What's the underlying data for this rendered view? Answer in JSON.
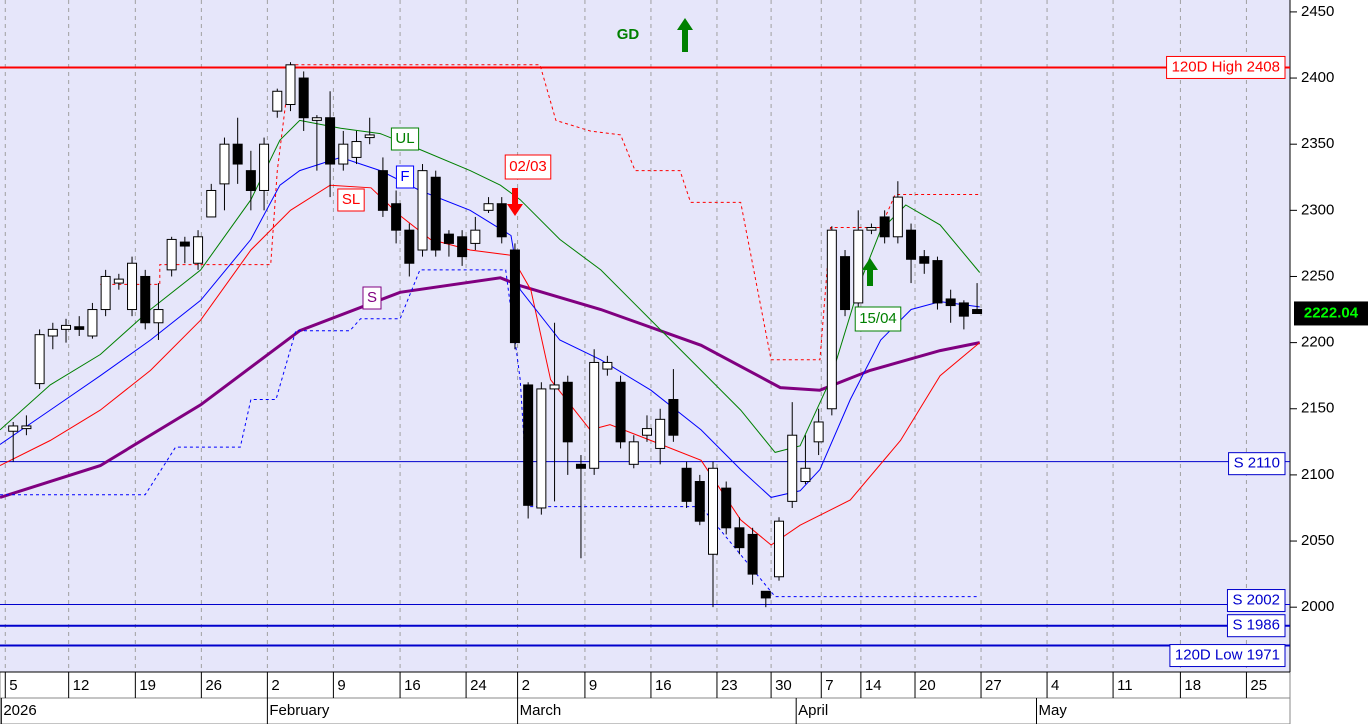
{
  "chart_data": {
    "type": "candlestick",
    "x": [
      0.6,
      1.6,
      2.6,
      3.6,
      4.6,
      5.6,
      6.6,
      7.6,
      8.6,
      9.6,
      10.6,
      11.6,
      12.6,
      13.6,
      14.6,
      15.6,
      16.6,
      17.6,
      18.6,
      19.6,
      20.6,
      21.6,
      22.6,
      23.6,
      24.6,
      25.6,
      26.6,
      27.6,
      28.6,
      29.6,
      30.6,
      31.6,
      32.6,
      33.6,
      34.6,
      35.6,
      36.6,
      37.6,
      38.6,
      39.6,
      40.6,
      41.6,
      42.6,
      43.6,
      44.6,
      45.6,
      46.6,
      47.6,
      48.6,
      49.6,
      50.6,
      51.6,
      52.6,
      53.6,
      54.6,
      55.6,
      56.6,
      57.6,
      58.6,
      59.6,
      60.6,
      61.6,
      62.6,
      63.6,
      64.6,
      65.6,
      66.6,
      67.6,
      68.6,
      69.6,
      70.6,
      71.6,
      72.6,
      73.6
    ],
    "open": [
      2133,
      2135,
      2169,
      2205,
      2210,
      2212,
      2205,
      2225,
      2245,
      2225,
      2250,
      2215,
      2255,
      2276,
      2260,
      2295,
      2320,
      2350,
      2330,
      2315,
      2375,
      2380,
      2400,
      2368,
      2370,
      2335,
      2340,
      2355,
      2330,
      2305,
      2285,
      2270,
      2325,
      2282,
      2280,
      2275,
      2300,
      2305,
      2270,
      2168,
      2075,
      2165,
      2170,
      2108,
      2105,
      2180,
      2170,
      2108,
      2130,
      2120,
      2157,
      2105,
      2095,
      2040,
      2090,
      2060,
      2055,
      2012,
      2023,
      2080,
      2095,
      2125,
      2150,
      2265,
      2230,
      2285,
      2295,
      2280,
      2285,
      2265,
      2262,
      2233,
      2230,
      2225
    ],
    "high": [
      2140,
      2145,
      2210,
      2215,
      2218,
      2220,
      2230,
      2255,
      2252,
      2265,
      2255,
      2245,
      2280,
      2280,
      2285,
      2320,
      2355,
      2370,
      2345,
      2355,
      2392,
      2412,
      2405,
      2372,
      2390,
      2360,
      2360,
      2370,
      2340,
      2315,
      2290,
      2335,
      2330,
      2285,
      2285,
      2295,
      2310,
      2310,
      2275,
      2170,
      2170,
      2215,
      2175,
      2115,
      2195,
      2190,
      2175,
      2130,
      2145,
      2150,
      2180,
      2110,
      2100,
      2110,
      2095,
      2068,
      2060,
      2012,
      2068,
      2155,
      2130,
      2150,
      2288,
      2270,
      2300,
      2290,
      2300,
      2322,
      2290,
      2270,
      2265,
      2240,
      2232,
      2245
    ],
    "low": [
      2110,
      2130,
      2165,
      2195,
      2200,
      2205,
      2203,
      2220,
      2240,
      2220,
      2210,
      2202,
      2250,
      2260,
      2255,
      2295,
      2300,
      2320,
      2300,
      2300,
      2370,
      2375,
      2360,
      2330,
      2310,
      2330,
      2335,
      2350,
      2295,
      2275,
      2250,
      2265,
      2265,
      2265,
      2258,
      2270,
      2298,
      2275,
      2195,
      2067,
      2070,
      2080,
      2100,
      2037,
      2100,
      2175,
      2120,
      2105,
      2125,
      2108,
      2125,
      2075,
      2062,
      2000,
      2055,
      2040,
      2017,
      2000,
      2020,
      2075,
      2093,
      2115,
      2145,
      2220,
      2225,
      2282,
      2275,
      2275,
      2245,
      2252,
      2225,
      2215,
      2210,
      2222
    ],
    "close": [
      2137,
      2137,
      2206,
      2210,
      2213,
      2210,
      2225,
      2250,
      2248,
      2260,
      2215,
      2225,
      2278,
      2273,
      2280,
      2315,
      2350,
      2335,
      2315,
      2350,
      2390,
      2410,
      2370,
      2370,
      2335,
      2350,
      2352,
      2357,
      2300,
      2285,
      2260,
      2330,
      2270,
      2275,
      2265,
      2285,
      2305,
      2280,
      2200,
      2077,
      2165,
      2168,
      2125,
      2105,
      2185,
      2185,
      2125,
      2125,
      2135,
      2142,
      2130,
      2080,
      2065,
      2105,
      2060,
      2045,
      2025,
      2007,
      2065,
      2130,
      2105,
      2140,
      2285,
      2225,
      2285,
      2287,
      2280,
      2310,
      2263,
      2260,
      2230,
      2228,
      2220,
      2222
    ],
    "lines": [
      {
        "name": "S",
        "color": "#800080",
        "width": 3,
        "dashed": false,
        "x": [
          -0.4,
          7.2,
          14.8,
          22.3,
          29.9,
          37.5,
          39,
          45.1,
          52.7,
          58.7,
          61.7,
          65.5,
          70.8,
          73.8
        ],
        "values": [
          2083,
          2107,
          2153,
          2209,
          2238,
          2249,
          2243,
          2225,
          2198,
          2166,
          2164,
          2179,
          2194,
          2200
        ]
      },
      {
        "name": "SL",
        "color": "#ff0000",
        "width": 1,
        "dashed": false,
        "x": [
          -0.4,
          3.4,
          7.2,
          11,
          14.8,
          18.6,
          21.6,
          24.6,
          27.7,
          29.9,
          32.2,
          35.2,
          38.3,
          39.8,
          41.3,
          44.3,
          45.8,
          48.9,
          52.7,
          55.7,
          58,
          60.2,
          64,
          67.8,
          70.8,
          73.8
        ],
        "values": [
          2107,
          2126,
          2149,
          2179,
          2217,
          2270,
          2300,
          2319,
          2317,
          2296,
          2278,
          2270,
          2266,
          2240,
          2172,
          2134,
          2138,
          2126,
          2111,
          2066,
          2047,
          2062,
          2081,
          2126,
          2175,
          2200
        ]
      },
      {
        "name": "F",
        "color": "#0000ff",
        "width": 1,
        "dashed": false,
        "x": [
          -0.4,
          3.4,
          7.2,
          11,
          14.8,
          18.6,
          20.8,
          22.3,
          25.4,
          28.4,
          31.4,
          35.2,
          38.3,
          39,
          42,
          45.1,
          48.9,
          52.7,
          55.7,
          58,
          60.2,
          61.7,
          64,
          66.3,
          68.6,
          70.8,
          73.8
        ],
        "values": [
          2123,
          2149,
          2175,
          2202,
          2232,
          2278,
          2319,
          2330,
          2340,
          2330,
          2315,
          2300,
          2281,
          2240,
          2202,
          2187,
          2164,
          2134,
          2104,
          2083,
          2088,
          2104,
          2157,
          2202,
          2225,
          2231,
          2227
        ]
      },
      {
        "name": "UL",
        "color": "#008000",
        "width": 1,
        "dashed": false,
        "x": [
          -0.4,
          3.4,
          7.2,
          11,
          14.8,
          18.6,
          20.8,
          22.3,
          25.4,
          28.4,
          31.4,
          35.2,
          37.5,
          39,
          42,
          45.1,
          48.9,
          52.7,
          55.7,
          58.3,
          60.2,
          62.5,
          64.8,
          66.3,
          68.2,
          70.8,
          73.8
        ],
        "values": [
          2134,
          2168,
          2191,
          2225,
          2255,
          2308,
          2353,
          2368,
          2362,
          2358,
          2346,
          2330,
          2319,
          2308,
          2278,
          2255,
          2217,
          2179,
          2149,
          2117,
          2122,
          2172,
          2247,
          2285,
          2304,
          2289,
          2253
        ]
      },
      {
        "color": "#ff0000",
        "width": 1,
        "dashed": true,
        "x": [
          7.2,
          11.7,
          11.7,
          20.1,
          20.6,
          21.6,
          40.5,
          41.7,
          44.3,
          46.6,
          47.7,
          51.1,
          51.9,
          55.7,
          58,
          61.7,
          62.5,
          66.3,
          67.4,
          73.8
        ],
        "values": [
          2244,
          2244,
          2259,
          2259,
          2330,
          2410,
          2410,
          2368,
          2360,
          2357,
          2330,
          2330,
          2306,
          2306,
          2187,
          2187,
          2287,
          2287,
          2312,
          2312
        ]
      },
      {
        "color": "#0000ff",
        "width": 1,
        "dashed": true,
        "x": [
          -0.4,
          10.6,
          12.9,
          17.8,
          18.6,
          20.5,
          22,
          26.1,
          26.9,
          29.9,
          31.4,
          37.9,
          39,
          39.6,
          52.7,
          58.3,
          73.8
        ],
        "values": [
          2085,
          2085,
          2121,
          2121,
          2157,
          2157,
          2209,
          2209,
          2218,
          2218,
          2255,
          2255,
          2172,
          2076,
          2076,
          2008,
          2008
        ]
      }
    ],
    "levels": [
      {
        "label": "120D High 2408",
        "value": 2408,
        "color": "#ff0000"
      },
      {
        "label": "S 2110",
        "value": 2110,
        "color": "#0000cc"
      },
      {
        "label": "S 2002",
        "value": 2002,
        "color": "#0000cc"
      },
      {
        "label": "S 1986",
        "value": 1986,
        "color": "#0000cc"
      },
      {
        "label": "120D Low 1971",
        "value": 1971,
        "color": "#0000cc"
      }
    ],
    "last": {
      "value": 2222.04,
      "label": "2222.04"
    },
    "annotations": [
      {
        "text": "GD",
        "color": "#008000"
      },
      {
        "text": "02/03",
        "color": "#ff0000"
      },
      {
        "text": "15/04",
        "color": "#008000"
      }
    ],
    "xlim": [
      -0.4,
      97.3
    ],
    "ylim": [
      1951,
      2459
    ],
    "yticks": [
      2000,
      2050,
      2100,
      2150,
      2200,
      2250,
      2300,
      2350,
      2400,
      2450
    ],
    "xticks": [
      {
        "value": 0,
        "label": "5"
      },
      {
        "value": 4.8,
        "label": "12"
      },
      {
        "value": 9.85,
        "label": "19"
      },
      {
        "value": 14.85,
        "label": "26"
      },
      {
        "value": 19.85,
        "label": "2"
      },
      {
        "value": 24.85,
        "label": "9"
      },
      {
        "value": 29.9,
        "label": "16"
      },
      {
        "value": 34.9,
        "label": "24"
      },
      {
        "value": 38.8,
        "label": "2"
      },
      {
        "value": 43.9,
        "label": "9"
      },
      {
        "value": 48.9,
        "label": "16"
      },
      {
        "value": 53.9,
        "label": "23"
      },
      {
        "value": 58,
        "label": "30"
      },
      {
        "value": 61.8,
        "label": "7"
      },
      {
        "value": 64.8,
        "label": "14"
      },
      {
        "value": 68.9,
        "label": "20"
      },
      {
        "value": 73.9,
        "label": "27"
      },
      {
        "value": 78.9,
        "label": "4"
      },
      {
        "value": 83.9,
        "label": "11"
      },
      {
        "value": 89,
        "label": "18"
      },
      {
        "value": 94,
        "label": "25"
      }
    ],
    "xticks2": [
      {
        "value": -0.3,
        "label": "2026"
      },
      {
        "value": 19.85,
        "label": "February"
      },
      {
        "value": 38.8,
        "label": "March"
      },
      {
        "value": 59.9,
        "label": "April"
      },
      {
        "value": 78.1,
        "label": "May"
      }
    ],
    "grid": true
  }
}
